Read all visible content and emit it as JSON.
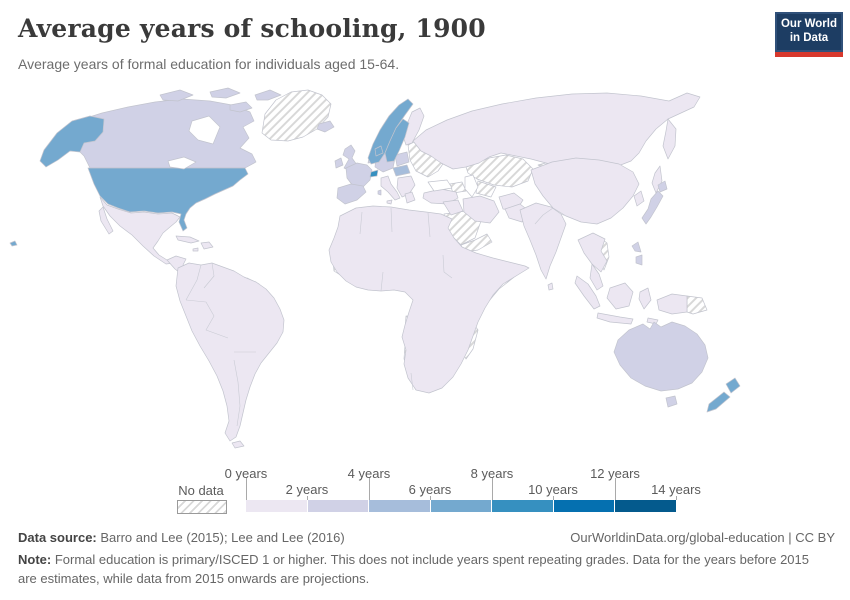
{
  "header": {
    "title": "Average years of schooling, 1900",
    "subtitle": "Average years of formal education for individuals aged 15-64.",
    "logo": {
      "line1": "Our World",
      "line2": "in Data",
      "bg": "#1d3d63",
      "accent": "#d7382d"
    }
  },
  "legend": {
    "no_data_label": "No data",
    "labels_top": [
      "0 years",
      "4 years",
      "8 years",
      "12 years"
    ],
    "labels_bottom": [
      "2 years",
      "6 years",
      "10 years",
      "14 years"
    ],
    "bins": [
      {
        "range": "0-2 years",
        "color": "#ece7f2"
      },
      {
        "range": "2-4 years",
        "color": "#d0d1e6"
      },
      {
        "range": "4-6 years",
        "color": "#a6bddb"
      },
      {
        "range": "6-8 years",
        "color": "#74a9cf"
      },
      {
        "range": "8-10 years",
        "color": "#3690c0"
      },
      {
        "range": "10-12 years",
        "color": "#0570b0"
      },
      {
        "range": "12-14 years",
        "color": "#045a8d"
      }
    ]
  },
  "map": {
    "ocean": "#ffffff",
    "border": "#c2c4ce",
    "hatch_line": "#d8d8d8"
  },
  "footer": {
    "source_label": "Data source:",
    "source_text": " Barro and Lee (2015); Lee and Lee (2016)",
    "link_text": "OurWorldinData.org/global-education | CC BY",
    "note_label": "Note:",
    "note_text": " Formal education is primary/ISCED 1 or higher. This does not include years spent repeating grades. Data for the years before 2015 are estimates, while data from 2015 onwards are projections."
  },
  "chart_data": {
    "type": "heatmap",
    "subtype": "choropleth_world_map",
    "title": "Average years of schooling, 1900",
    "unit": "years",
    "legend_bins": [
      "0-2",
      "2-4",
      "4-6",
      "6-8",
      "8-10",
      "10-12",
      "12-14",
      "No data"
    ],
    "regions": [
      {
        "name": "United States",
        "value_bin": "6-8 years"
      },
      {
        "name": "Canada",
        "value_bin": "2-4 years"
      },
      {
        "name": "Mexico",
        "value_bin": "0-2 years"
      },
      {
        "name": "Central America & Caribbean",
        "value_bin": "0-2 years"
      },
      {
        "name": "South America (Brazil, Argentina, Peru, etc.)",
        "value_bin": "0-2 years"
      },
      {
        "name": "Guyanas",
        "value_bin": "No data"
      },
      {
        "name": "Greenland",
        "value_bin": "No data"
      },
      {
        "name": "Iceland",
        "value_bin": "2-4 years"
      },
      {
        "name": "United Kingdom",
        "value_bin": "2-4 years"
      },
      {
        "name": "Ireland",
        "value_bin": "2-4 years"
      },
      {
        "name": "France",
        "value_bin": "2-4 years"
      },
      {
        "name": "Spain & Portugal",
        "value_bin": "2-4 years"
      },
      {
        "name": "Germany & Central Europe",
        "value_bin": "2-4 years"
      },
      {
        "name": "Switzerland",
        "value_bin": "8-10 years"
      },
      {
        "name": "Norway",
        "value_bin": "6-8 years"
      },
      {
        "name": "Sweden",
        "value_bin": "6-8 years"
      },
      {
        "name": "Denmark",
        "value_bin": "6-8 years"
      },
      {
        "name": "Finland",
        "value_bin": "0-2 years"
      },
      {
        "name": "Italy",
        "value_bin": "0-2 years"
      },
      {
        "name": "Austria-Hungary region",
        "value_bin": "4-6 years"
      },
      {
        "name": "Balkans",
        "value_bin": "No data"
      },
      {
        "name": "Baltic states, Belarus, Ukraine",
        "value_bin": "No data"
      },
      {
        "name": "Russia",
        "value_bin": "0-2 years"
      },
      {
        "name": "Kazakhstan & Central Asia",
        "value_bin": "No data"
      },
      {
        "name": "Mongolia",
        "value_bin": "No data"
      },
      {
        "name": "China",
        "value_bin": "0-2 years"
      },
      {
        "name": "Korea",
        "value_bin": "0-2 years"
      },
      {
        "name": "Japan",
        "value_bin": "2-4 years"
      },
      {
        "name": "India",
        "value_bin": "0-2 years"
      },
      {
        "name": "Turkey",
        "value_bin": "0-2 years"
      },
      {
        "name": "Iran",
        "value_bin": "0-2 years"
      },
      {
        "name": "Saudi Arabia & Arabian Peninsula",
        "value_bin": "No data"
      },
      {
        "name": "Southeast Asia (Thailand, Burma, Malaya)",
        "value_bin": "0-2 years"
      },
      {
        "name": "Vietnam",
        "value_bin": "No data"
      },
      {
        "name": "Philippines",
        "value_bin": "2-4 years"
      },
      {
        "name": "Indonesia",
        "value_bin": "0-2 years"
      },
      {
        "name": "New Guinea (east)",
        "value_bin": "No data"
      },
      {
        "name": "Australia",
        "value_bin": "2-4 years"
      },
      {
        "name": "New Zealand",
        "value_bin": "6-8 years"
      },
      {
        "name": "North Africa (Egypt, Algeria, Libya, Sudan)",
        "value_bin": "0-2 years"
      },
      {
        "name": "Sahel (Mauritania, Mali, Niger, Chad)",
        "value_bin": "No data"
      },
      {
        "name": "Ethiopia & Somalia",
        "value_bin": "No data"
      },
      {
        "name": "East Africa coast",
        "value_bin": "No data"
      },
      {
        "name": "Angola, Namibia, Botswana",
        "value_bin": "No data"
      },
      {
        "name": "Mozambique",
        "value_bin": "No data"
      },
      {
        "name": "Madagascar",
        "value_bin": "No data"
      },
      {
        "name": "South Africa",
        "value_bin": "0-2 years"
      }
    ]
  }
}
